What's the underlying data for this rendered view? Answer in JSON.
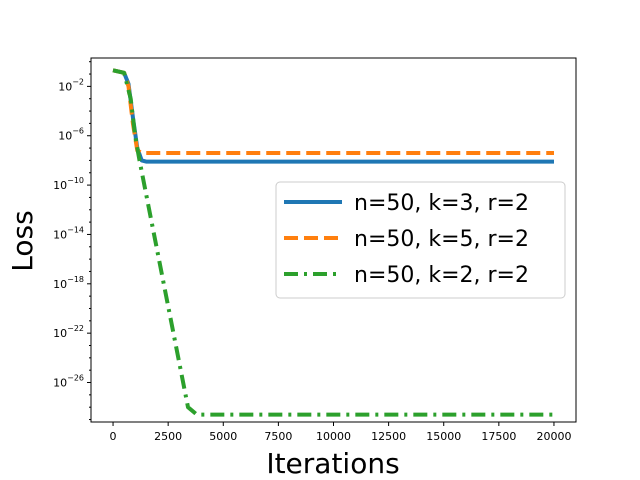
{
  "chart_data": {
    "type": "line",
    "title": "",
    "xlabel": "Iterations",
    "ylabel": "Loss",
    "xlim": [
      -1000,
      21000
    ],
    "ylim_log10": [
      -29.2,
      0.3
    ],
    "y_scale": "log",
    "grid": false,
    "legend_position": "right",
    "x_ticks": [
      0,
      2500,
      5000,
      7500,
      10000,
      12500,
      15000,
      17500,
      20000
    ],
    "x_tick_labels": [
      "0",
      "2500",
      "5000",
      "7500",
      "10000",
      "12500",
      "15000",
      "17500",
      "20000"
    ],
    "y_ticks_log10": [
      -2,
      -6,
      -10,
      -14,
      -18,
      -22,
      -26
    ],
    "y_tick_labels": [
      {
        "base": "10",
        "exp": "−2"
      },
      {
        "base": "10",
        "exp": "−6"
      },
      {
        "base": "10",
        "exp": "−10"
      },
      {
        "base": "10",
        "exp": "−14"
      },
      {
        "base": "10",
        "exp": "−18"
      },
      {
        "base": "10",
        "exp": "−22"
      },
      {
        "base": "10",
        "exp": "−26"
      }
    ],
    "series": [
      {
        "name": "n=50, k=3, r=2",
        "color": "#1f77b4",
        "style": "solid",
        "points_log10": [
          [
            0,
            -0.7
          ],
          [
            500,
            -0.9
          ],
          [
            700,
            -1.8
          ],
          [
            900,
            -4.5
          ],
          [
            1100,
            -7.0
          ],
          [
            1300,
            -8.0
          ],
          [
            1500,
            -8.1
          ],
          [
            20000,
            -8.1
          ]
        ]
      },
      {
        "name": "n=50, k=5, r=2",
        "color": "#ff7f0e",
        "style": "dashed",
        "points_log10": [
          [
            0,
            -0.7
          ],
          [
            500,
            -0.9
          ],
          [
            700,
            -2.0
          ],
          [
            900,
            -5.0
          ],
          [
            1100,
            -7.2
          ],
          [
            1300,
            -7.4
          ],
          [
            20000,
            -7.4
          ]
        ]
      },
      {
        "name": "n=50, k=2, r=2",
        "color": "#2ca02c",
        "style": "dashdot",
        "points_log10": [
          [
            0,
            -0.7
          ],
          [
            500,
            -0.9
          ],
          [
            800,
            -3.0
          ],
          [
            1000,
            -6.0
          ],
          [
            1200,
            -8.0
          ],
          [
            3400,
            -28.0
          ],
          [
            3800,
            -28.6
          ],
          [
            20000,
            -28.6
          ]
        ]
      }
    ]
  }
}
